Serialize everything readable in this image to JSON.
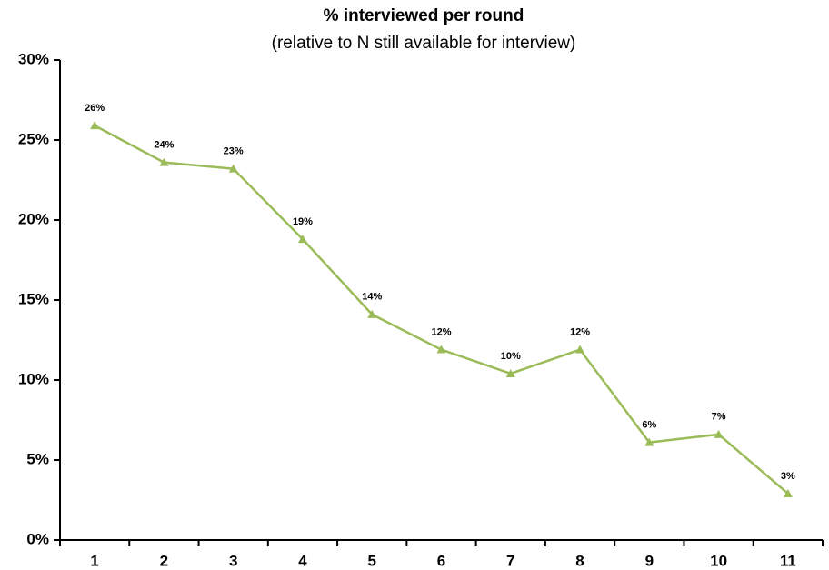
{
  "chart_data": {
    "type": "line",
    "title": "% interviewed per round",
    "subtitle": "(relative to N still available for interview)",
    "categories": [
      "1",
      "2",
      "3",
      "4",
      "5",
      "6",
      "7",
      "8",
      "9",
      "10",
      "11"
    ],
    "values": [
      25.9,
      23.6,
      23.2,
      18.8,
      14.1,
      11.9,
      10.4,
      11.9,
      6.1,
      6.6,
      2.9
    ],
    "value_labels": [
      "26%",
      "24%",
      "23%",
      "19%",
      "14%",
      "12%",
      "10%",
      "12%",
      "6%",
      "7%",
      "3%"
    ],
    "color": "#9bbb59",
    "marker": "triangle",
    "ylim": [
      0,
      30
    ],
    "yticks": [
      {
        "value": 0,
        "label": "0%"
      },
      {
        "value": 5,
        "label": "5%"
      },
      {
        "value": 10,
        "label": "10%"
      },
      {
        "value": 15,
        "label": "15%"
      },
      {
        "value": 20,
        "label": "20%"
      },
      {
        "value": 25,
        "label": "25%"
      },
      {
        "value": 30,
        "label": "30%"
      }
    ],
    "grid": false
  }
}
